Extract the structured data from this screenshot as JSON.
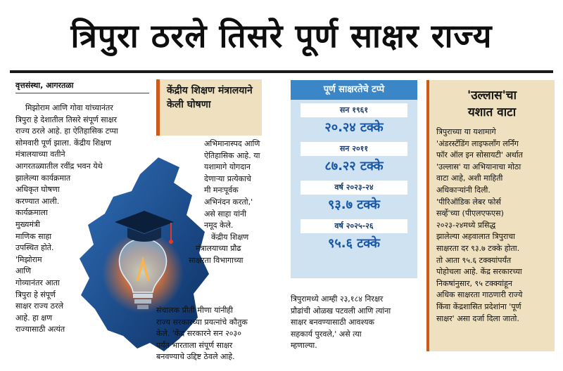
{
  "headline": "त्रिपुरा ठरले तिसरे पूर्ण साक्षर राज्य",
  "dateline": "वृत्तसंस्था, आगरतळा",
  "col1": {
    "wide": [
      "मिझोराम आणि गोवा यांच्यानंतर",
      "त्रिपुरा हे देशातील तिसरे संपूर्ण साक्षर",
      "राज्य ठरले आहे. हा ऐतिहासिक टप्पा",
      "सोमवारी पूर्ण झाला. केंद्रीय शिक्षण",
      "मंत्रालयाच्या वतीने",
      "आगरतळ्यातील रवींद्र भवन येथे",
      "झालेल्या कार्यक्रमात",
      "अधिकृत घोषणा",
      "करण्यात आली."
    ],
    "narrow": [
      "कार्यक्रमाला",
      "मुख्यमंत्री",
      "माणिक साहा",
      "उपस्थित होते.",
      "'मिझोराम",
      "आणि",
      "गोव्यानंतर आता",
      "त्रिपुरा हे संपूर्ण",
      "साक्षर राज्य ठरले",
      "आहे. हा क्षण",
      "राज्यासाठी अत्यंत"
    ]
  },
  "kicker": "केंद्रीय शिक्षण मंत्रालयाने केली घोषणा",
  "col2": {
    "top": [
      "अभिमानास्पद आणि",
      "ऐतिहासिक आहे. या",
      "यशामागे योगदान",
      "देणाऱ्या प्रत्येकाचे",
      "मी मनःपूर्वक",
      "अभिनंदन करतो,'",
      "असे साहा यांनी",
      "नमूद केले."
    ],
    "mid": [
      "केंद्रीय शिक्षण",
      "मंत्रालयाच्या प्रौढ",
      "साक्षरता विभागाच्या"
    ],
    "bottom": [
      "संचालक प्रीती मीणा यांनीही",
      "राज्य सरकारच्या प्रयत्नांचे कौतुक",
      "केले. 'केंद्र सरकारने सन २०३०",
      "पर्यंत भारताला संपूर्ण साक्षर",
      "बनवण्याचे उद्दिष्ट ठेवले आहे."
    ]
  },
  "milestones": {
    "heading": "पूर्ण साक्षरतेचे टप्पे",
    "items": [
      {
        "year": "सन १९६१",
        "value": "२०.२४ टक्के"
      },
      {
        "year": "सन २०११",
        "value": "८७.२२ टक्के"
      },
      {
        "year": "वर्ष २०२३-२४",
        "value": "९३.७ टक्के"
      },
      {
        "year": "वर्ष २०२५-२६",
        "value": "९५.६ टक्के"
      }
    ]
  },
  "col3": [
    "त्रिपुरामध्ये आम्ही २३,१८४ निरक्षर",
    "प्रौढांची ओळख पटवली आणि त्यांना",
    "साक्षर बनवण्यासाठी आवश्यक",
    "सहकार्य पुरवले,' असे त्या",
    "म्हणाल्या."
  ],
  "ullas": {
    "title_line1": "'उल्लास'चा",
    "title_line2": "यशात वाटा",
    "lines": [
      "त्रिपुराच्या या यशामागे",
      "'अंडरस्टँडिंग लाइफलाँग लर्निंग",
      "फॉर ऑल इन सोसायटी' अर्थात",
      "'उल्लास' या अभियानाचा मोठा",
      "वाटा आहे, अशी माहिती",
      "अधिकाऱ्यांनी दिली.",
      "'पीरिऑडिक लेबर फोर्स",
      "सर्व्हे'च्या (पीएलएफएस)",
      "२०२३-२४मध्ये प्रसिद्ध",
      "झालेल्या अहवालात त्रिपुराचा",
      "साक्षरता दर ९३.७ टक्के होता.",
      "तो आता ९५.६ टक्क्यांपर्यंत",
      "पोहोचला आहे. केंद्र सरकारच्या",
      "निकषांनुसार, ९५ टक्क्यांहून",
      "अधिक साक्षरता गाठणारी राज्ये",
      "किंवा केंद्रशासित प्रदेशांना 'पूर्ण",
      "साक्षर' असा दर्जा दिला जातो."
    ]
  },
  "colors": {
    "accent_orange": "#cc5a1a",
    "box_beige": "#efe1bf",
    "box_blue": "#cfe2f1",
    "heading_blue": "#3a86c6",
    "value_blue": "#1757a6"
  },
  "icons": [
    "tripura-map-icon",
    "graduation-cap-icon",
    "light-bulb-icon"
  ]
}
